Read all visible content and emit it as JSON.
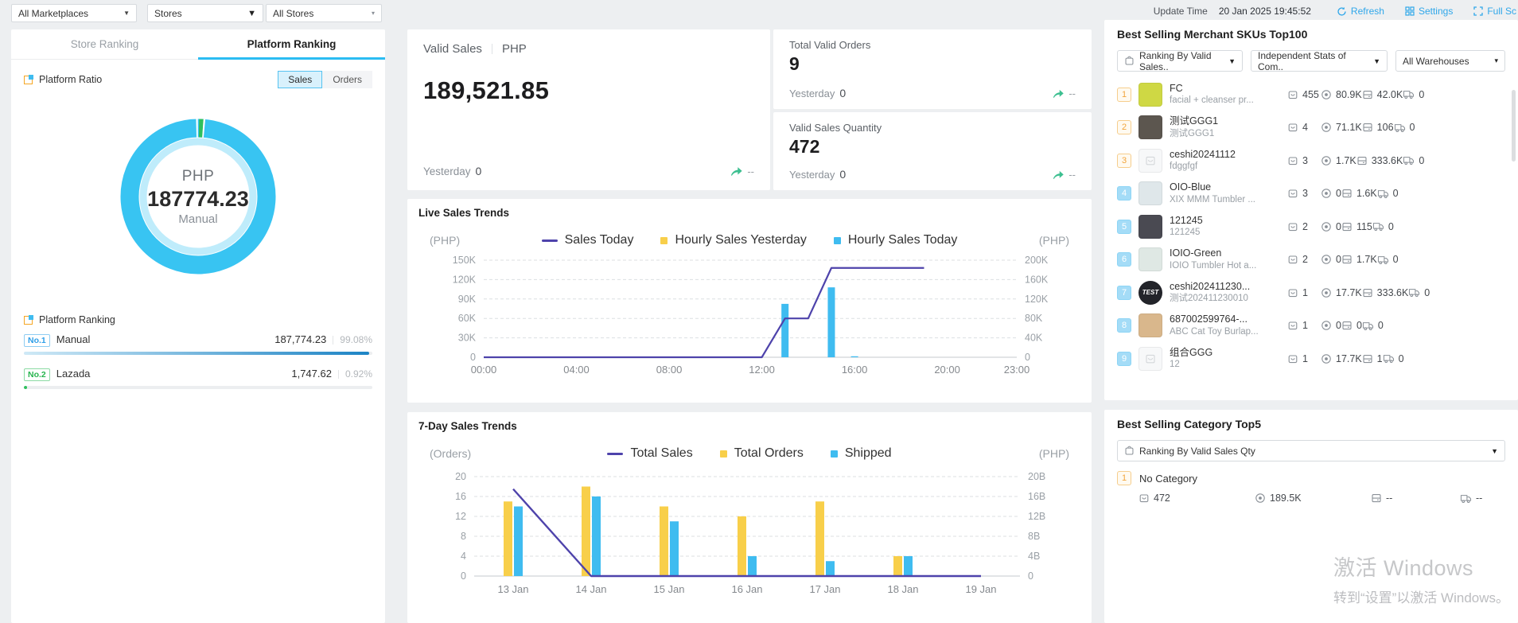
{
  "topbar": {
    "filters": [
      {
        "label": "All Marketplaces"
      },
      {
        "label": "Stores"
      },
      {
        "label": "All Stores"
      }
    ],
    "update_time_label": "Update Time",
    "update_time": "20 Jan 2025 19:45:52",
    "refresh_label": "Refresh",
    "settings_label": "Settings",
    "fullscreen_label": "Full Sc"
  },
  "left_panel": {
    "tabs": [
      {
        "label": "Store Ranking",
        "active": false
      },
      {
        "label": "Platform Ranking",
        "active": true
      }
    ],
    "ratio_title": "Platform Ratio",
    "toggle": [
      {
        "label": "Sales",
        "active": true
      },
      {
        "label": "Orders",
        "active": false
      }
    ],
    "donut": {
      "currency": "PHP",
      "value": "187774.23",
      "platform": "Manual",
      "segments": [
        {
          "name": "Manual",
          "pct": 99.08,
          "color": "#38c4f2"
        },
        {
          "name": "Lazada",
          "pct": 0.92,
          "color": "#2ec05c"
        }
      ]
    },
    "ranking_title": "Platform Ranking",
    "ranking_rows": [
      {
        "rank": "No.1",
        "name": "Manual",
        "value": "187,774.23",
        "pct": "99.08%",
        "pct_num": 99.08,
        "color": "blue"
      },
      {
        "rank": "No.2",
        "name": "Lazada",
        "value": "1,747.62",
        "pct": "0.92%",
        "pct_num": 0.92,
        "color": "green"
      }
    ]
  },
  "stats": {
    "valid_sales": {
      "label": "Valid Sales",
      "currency": "PHP",
      "value": "189,521.85",
      "yesterday_label": "Yesterday",
      "yesterday": "0",
      "delta": "--"
    },
    "total_valid_orders": {
      "label": "Total Valid Orders",
      "value": "9",
      "yesterday_label": "Yesterday",
      "yesterday": "0",
      "delta": "--"
    },
    "valid_sales_quantity": {
      "label": "Valid Sales Quantity",
      "value": "472",
      "yesterday_label": "Yesterday",
      "yesterday": "0",
      "delta": "--"
    }
  },
  "chart_data": [
    {
      "type": "line",
      "title": "Live Sales Trends",
      "unit_left": "(PHP)",
      "unit_right": "(PHP)",
      "x_tick_hours": [
        0,
        4,
        8,
        12,
        16,
        20,
        23
      ],
      "x_tick_labels": [
        "00:00",
        "04:00",
        "08:00",
        "12:00",
        "16:00",
        "20:00",
        "23:00"
      ],
      "left_axis": {
        "tick_labels": [
          "150K",
          "120K",
          "90K",
          "60K",
          "30K",
          "0"
        ],
        "max": 150000
      },
      "right_axis": {
        "tick_labels": [
          "200K",
          "160K",
          "120K",
          "80K",
          "40K",
          "0"
        ],
        "max": 200000
      },
      "legend": [
        {
          "label": "Sales Today",
          "type": "line",
          "color": "#4e43ab"
        },
        {
          "label": "Hourly Sales Yesterday",
          "type": "square",
          "color": "#f8cf4a"
        },
        {
          "label": "Hourly Sales Today",
          "type": "square",
          "color": "#3fbcf0"
        }
      ],
      "sales_today_line_points": [
        [
          0,
          0
        ],
        [
          12,
          0
        ],
        [
          13,
          60000
        ],
        [
          14,
          60000
        ],
        [
          15,
          138000
        ],
        [
          19,
          138000
        ]
      ],
      "hourly_sales_yesterday_bars": {},
      "hourly_sales_today_bars": {
        "13": 110000,
        "15": 144000,
        "16": 2000
      }
    },
    {
      "type": "bar",
      "title": "7-Day Sales Trends",
      "unit_left": "(Orders)",
      "unit_right": "(PHP)",
      "categories": [
        "13 Jan",
        "14 Jan",
        "15 Jan",
        "16 Jan",
        "17 Jan",
        "18 Jan",
        "19 Jan"
      ],
      "left_axis": {
        "tick_labels": [
          "20",
          "16",
          "12",
          "8",
          "4",
          "0"
        ],
        "max": 20
      },
      "right_axis": {
        "tick_labels": [
          "20B",
          "16B",
          "12B",
          "8B",
          "4B",
          "0"
        ],
        "max": 20
      },
      "legend": [
        {
          "label": "Total Sales",
          "type": "line",
          "color": "#4e43ab"
        },
        {
          "label": "Total Orders",
          "type": "square",
          "color": "#f8cf4a"
        },
        {
          "label": "Shipped",
          "type": "square",
          "color": "#3fbcf0"
        }
      ],
      "series": [
        {
          "name": "Total Orders",
          "kind": "bar",
          "color": "#f8cf4a",
          "values": [
            15,
            18,
            14,
            12,
            15,
            4,
            0
          ]
        },
        {
          "name": "Shipped",
          "kind": "bar",
          "color": "#3fbcf0",
          "values": [
            14,
            16,
            11,
            4,
            3,
            4,
            0
          ]
        },
        {
          "name": "Total Sales",
          "kind": "line",
          "color": "#4e43ab",
          "axis_unit": "B",
          "values": [
            17.5,
            0,
            0,
            0,
            0,
            0,
            0
          ]
        }
      ]
    }
  ],
  "sku_panel": {
    "title": "Best Selling Merchant SKUs Top100",
    "filters": [
      {
        "label": "Ranking By Valid Sales..",
        "icon": "bag"
      },
      {
        "label": "Independent Stats of Com..",
        "icon": ""
      },
      {
        "label": "All Warehouses",
        "icon": ""
      }
    ],
    "rows": [
      {
        "rank": "1",
        "title": "FC",
        "subtitle": "facial + cleanser pr...",
        "img_bg": "#cfd844",
        "img_label": "",
        "stats": [
          "455",
          "80.9K",
          "42.0K",
          "0"
        ]
      },
      {
        "rank": "2",
        "title": "测试GGG1",
        "subtitle": "测试GGG1",
        "img_bg": "#5c564f",
        "img_label": "",
        "stats": [
          "4",
          "71.1K",
          "106",
          "0"
        ]
      },
      {
        "rank": "3",
        "title": "ceshi20241112",
        "subtitle": "fdggfgf",
        "img_bg": "#f7f8f9",
        "img_label": "",
        "placeholder": true,
        "stats": [
          "3",
          "1.7K",
          "333.6K",
          "0"
        ]
      },
      {
        "rank": "4",
        "title": "OIO-Blue",
        "subtitle": "XIX MMM Tumbler ...",
        "img_bg": "#dfe7ea",
        "img_label": "",
        "stats": [
          "3",
          "0",
          "1.6K",
          "0"
        ]
      },
      {
        "rank": "5",
        "title": "121245",
        "subtitle": "121245",
        "img_bg": "#4a4a52",
        "img_label": "",
        "stats": [
          "2",
          "0",
          "115",
          "0"
        ]
      },
      {
        "rank": "6",
        "title": "IOIO-Green",
        "subtitle": "IOIO Tumbler Hot a...",
        "img_bg": "#dfe8e4",
        "img_label": "",
        "stats": [
          "2",
          "0",
          "1.7K",
          "0"
        ]
      },
      {
        "rank": "7",
        "title": "ceshi202411230...",
        "subtitle": "测试202411230010",
        "img_bg": "#23242a",
        "img_label": "TEST",
        "circle": true,
        "stats": [
          "1",
          "17.7K",
          "333.6K",
          "0"
        ]
      },
      {
        "rank": "8",
        "title": "687002599764-...",
        "subtitle": "ABC Cat Toy Burlap...",
        "img_bg": "#d9b78c",
        "img_label": "",
        "stats": [
          "1",
          "0",
          "0",
          "0"
        ]
      },
      {
        "rank": "9",
        "title": "组合GGG",
        "subtitle": "12",
        "img_bg": "#f7f8f9",
        "img_label": "",
        "placeholder": true,
        "stats": [
          "1",
          "17.7K",
          "1",
          "0"
        ]
      }
    ]
  },
  "category_panel": {
    "title": "Best Selling Category Top5",
    "filter_label": "Ranking By Valid Sales Qty",
    "rows": [
      {
        "rank": "1",
        "name": "No Category",
        "stats": [
          "472",
          "189.5K",
          "--",
          "--"
        ]
      }
    ]
  },
  "watermark": {
    "line1": "激活 Windows",
    "line2": "转到“设置”以激活 Windows。"
  }
}
